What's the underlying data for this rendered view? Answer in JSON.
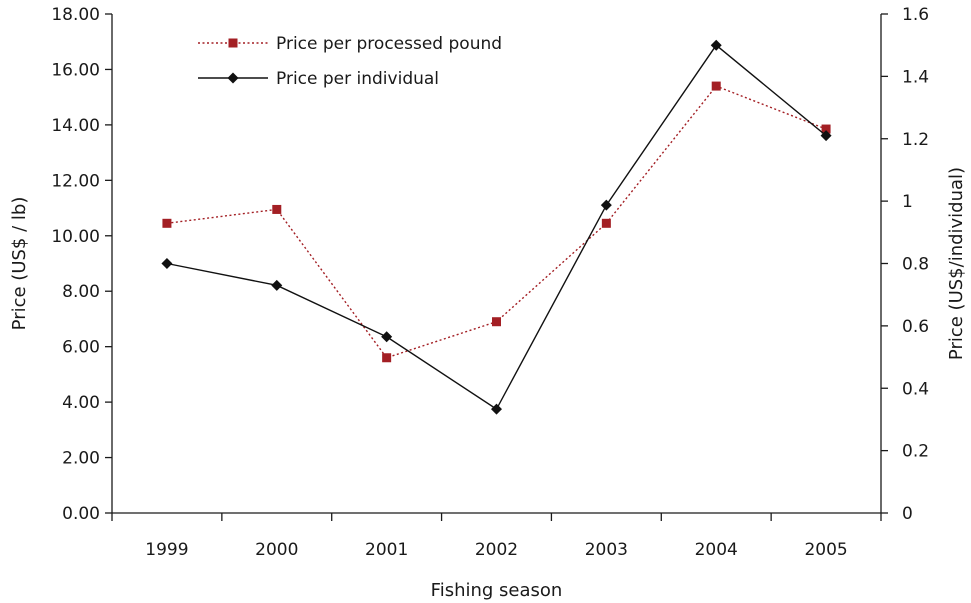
{
  "chart_data": {
    "type": "line",
    "categories": [
      "1999",
      "2000",
      "2001",
      "2002",
      "2003",
      "2004",
      "2005"
    ],
    "xlabel": "Fishing season",
    "ylabel": "Price (US$ / lb)",
    "ylabel_right": "Price (US$/individual)",
    "ylim": [
      0,
      18
    ],
    "ylim_right": [
      0,
      1.6
    ],
    "yticks": [
      "0.00",
      "2.00",
      "4.00",
      "6.00",
      "8.00",
      "10.00",
      "12.00",
      "14.00",
      "16.00",
      "18.00"
    ],
    "yticks_right": [
      "0",
      "0.2",
      "0.4",
      "0.6",
      "0.8",
      "1",
      "1.2",
      "1.4",
      "1.6"
    ],
    "grid": false,
    "legend_position": "top-left",
    "series": [
      {
        "name": "Price per processed pound",
        "axis": "left",
        "values": [
          10.45,
          10.95,
          5.6,
          6.9,
          10.45,
          15.4,
          13.85
        ],
        "color": "#a31f24",
        "line_style": "dotted",
        "marker": "square"
      },
      {
        "name": "Price per individual",
        "axis": "right",
        "values": [
          0.8,
          0.73,
          0.565,
          0.333,
          0.987,
          1.5,
          1.21
        ],
        "color": "#111111",
        "line_style": "solid",
        "marker": "diamond"
      }
    ]
  }
}
